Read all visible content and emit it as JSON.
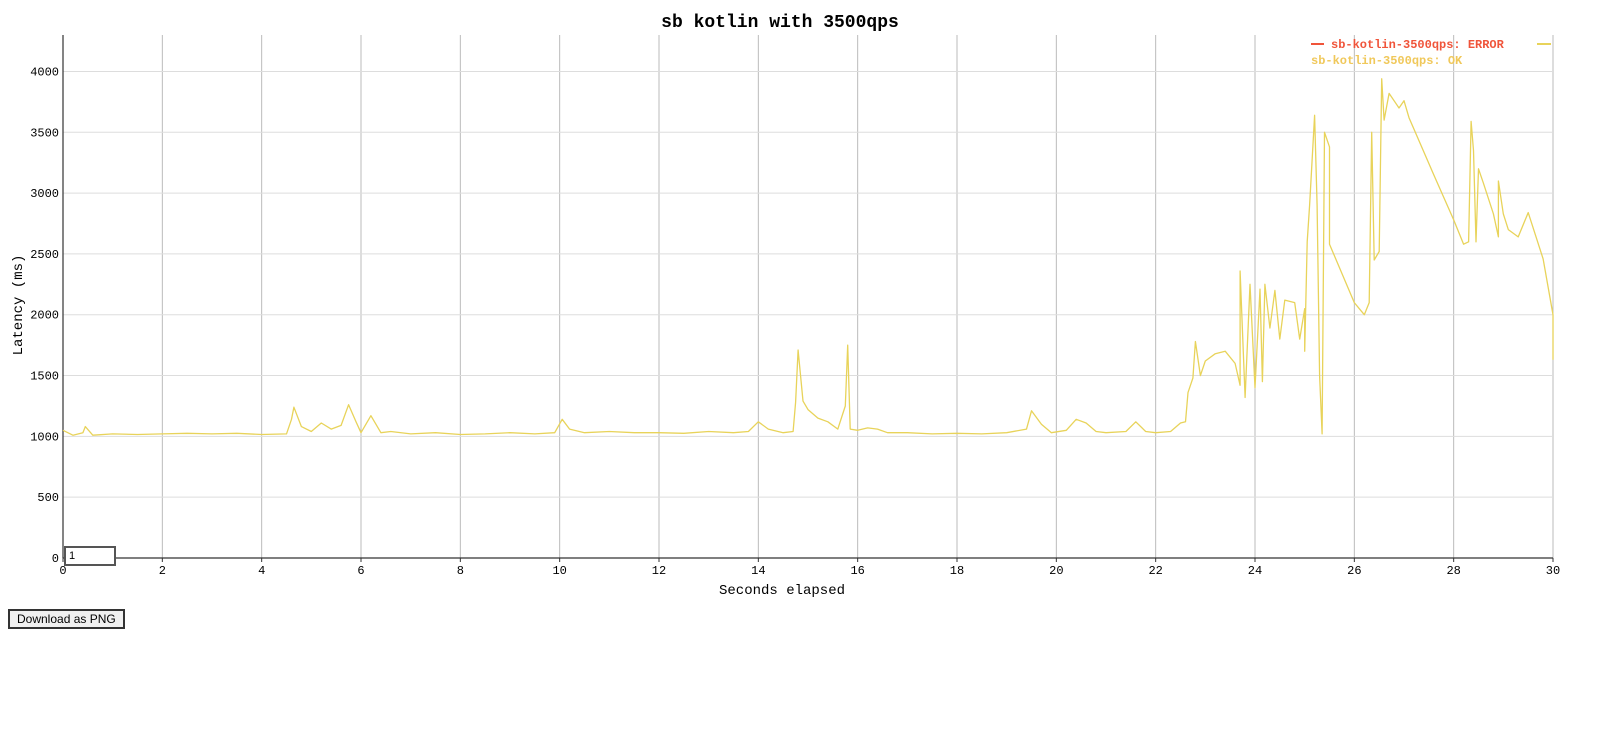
{
  "download_button_label": "Download as PNG",
  "smoothing_input_value": "1",
  "chart_data": {
    "type": "line",
    "title": "sb kotlin with 3500qps",
    "xlabel": "Seconds elapsed",
    "ylabel": "Latency (ms)",
    "xlim": [
      0,
      30
    ],
    "ylim": [
      0,
      4300
    ],
    "xticks": [
      0,
      2,
      4,
      6,
      8,
      10,
      12,
      14,
      16,
      18,
      20,
      22,
      24,
      26,
      28,
      30
    ],
    "yticks": [
      0,
      500,
      1000,
      1500,
      2000,
      2500,
      3000,
      3500,
      4000
    ],
    "grid": true,
    "legend_position": "top-right",
    "series": [
      {
        "name": "sb-kotlin-3500qps: ERROR",
        "color": "#f0543a",
        "points": []
      },
      {
        "name": "sb-kotlin-3500qps: OK",
        "color": "#e8d35a",
        "points": [
          [
            0.0,
            1050
          ],
          [
            0.2,
            1010
          ],
          [
            0.4,
            1030
          ],
          [
            0.45,
            1080
          ],
          [
            0.6,
            1010
          ],
          [
            1.0,
            1020
          ],
          [
            1.5,
            1015
          ],
          [
            2.0,
            1020
          ],
          [
            2.5,
            1025
          ],
          [
            3.0,
            1020
          ],
          [
            3.5,
            1025
          ],
          [
            4.0,
            1015
          ],
          [
            4.5,
            1020
          ],
          [
            4.6,
            1140
          ],
          [
            4.65,
            1240
          ],
          [
            4.8,
            1080
          ],
          [
            5.0,
            1040
          ],
          [
            5.2,
            1110
          ],
          [
            5.4,
            1060
          ],
          [
            5.6,
            1090
          ],
          [
            5.75,
            1260
          ],
          [
            5.9,
            1120
          ],
          [
            6.0,
            1030
          ],
          [
            6.2,
            1170
          ],
          [
            6.4,
            1030
          ],
          [
            6.6,
            1040
          ],
          [
            7.0,
            1020
          ],
          [
            7.5,
            1030
          ],
          [
            8.0,
            1015
          ],
          [
            8.5,
            1020
          ],
          [
            9.0,
            1030
          ],
          [
            9.5,
            1020
          ],
          [
            9.9,
            1030
          ],
          [
            10.05,
            1140
          ],
          [
            10.2,
            1060
          ],
          [
            10.5,
            1030
          ],
          [
            11.0,
            1040
          ],
          [
            11.5,
            1030
          ],
          [
            12.0,
            1030
          ],
          [
            12.5,
            1025
          ],
          [
            13.0,
            1040
          ],
          [
            13.5,
            1030
          ],
          [
            13.8,
            1040
          ],
          [
            14.0,
            1120
          ],
          [
            14.2,
            1060
          ],
          [
            14.5,
            1030
          ],
          [
            14.7,
            1040
          ],
          [
            14.75,
            1280
          ],
          [
            14.8,
            1710
          ],
          [
            14.9,
            1290
          ],
          [
            15.0,
            1220
          ],
          [
            15.2,
            1150
          ],
          [
            15.4,
            1120
          ],
          [
            15.6,
            1060
          ],
          [
            15.75,
            1250
          ],
          [
            15.8,
            1750
          ],
          [
            15.85,
            1060
          ],
          [
            16.0,
            1050
          ],
          [
            16.2,
            1070
          ],
          [
            16.4,
            1060
          ],
          [
            16.6,
            1030
          ],
          [
            17.0,
            1030
          ],
          [
            17.5,
            1020
          ],
          [
            18.0,
            1025
          ],
          [
            18.5,
            1020
          ],
          [
            19.0,
            1030
          ],
          [
            19.4,
            1060
          ],
          [
            19.5,
            1210
          ],
          [
            19.7,
            1100
          ],
          [
            19.9,
            1030
          ],
          [
            20.2,
            1050
          ],
          [
            20.4,
            1140
          ],
          [
            20.6,
            1110
          ],
          [
            20.8,
            1040
          ],
          [
            21.0,
            1030
          ],
          [
            21.4,
            1040
          ],
          [
            21.6,
            1120
          ],
          [
            21.8,
            1040
          ],
          [
            22.0,
            1030
          ],
          [
            22.3,
            1040
          ],
          [
            22.5,
            1110
          ],
          [
            22.6,
            1120
          ],
          [
            22.65,
            1360
          ],
          [
            22.75,
            1480
          ],
          [
            22.8,
            1780
          ],
          [
            22.9,
            1500
          ],
          [
            23.0,
            1620
          ],
          [
            23.2,
            1680
          ],
          [
            23.4,
            1700
          ],
          [
            23.6,
            1600
          ],
          [
            23.7,
            1420
          ],
          [
            23.7,
            2360
          ],
          [
            23.8,
            1320
          ],
          [
            23.9,
            2250
          ],
          [
            24.0,
            1400
          ],
          [
            24.1,
            2210
          ],
          [
            24.15,
            1450
          ],
          [
            24.2,
            2250
          ],
          [
            24.3,
            1890
          ],
          [
            24.4,
            2200
          ],
          [
            24.5,
            1800
          ],
          [
            24.6,
            2120
          ],
          [
            24.8,
            2100
          ],
          [
            24.9,
            1800
          ],
          [
            25.0,
            2050
          ],
          [
            25.0,
            1700
          ],
          [
            25.05,
            2600
          ],
          [
            25.1,
            2900
          ],
          [
            25.2,
            3640
          ],
          [
            25.25,
            2900
          ],
          [
            25.3,
            1500
          ],
          [
            25.35,
            1020
          ],
          [
            25.4,
            3500
          ],
          [
            25.5,
            3380
          ],
          [
            25.5,
            2580
          ],
          [
            26.0,
            2100
          ],
          [
            26.1,
            2050
          ],
          [
            26.2,
            2000
          ],
          [
            26.3,
            2100
          ],
          [
            26.35,
            3500
          ],
          [
            26.4,
            2450
          ],
          [
            26.5,
            2520
          ],
          [
            26.55,
            3940
          ],
          [
            26.6,
            3600
          ],
          [
            26.7,
            3820
          ],
          [
            26.9,
            3700
          ],
          [
            27.0,
            3760
          ],
          [
            27.1,
            3620
          ],
          [
            27.6,
            3150
          ],
          [
            28.0,
            2780
          ],
          [
            28.2,
            2580
          ],
          [
            28.3,
            2600
          ],
          [
            28.35,
            3590
          ],
          [
            28.4,
            3350
          ],
          [
            28.45,
            2600
          ],
          [
            28.5,
            3200
          ],
          [
            28.6,
            3080
          ],
          [
            28.8,
            2830
          ],
          [
            28.9,
            2640
          ],
          [
            28.9,
            3100
          ],
          [
            29.0,
            2830
          ],
          [
            29.1,
            2700
          ],
          [
            29.3,
            2640
          ],
          [
            29.5,
            2840
          ],
          [
            29.8,
            2460
          ],
          [
            30.0,
            2000
          ],
          [
            30.0,
            1630
          ]
        ]
      }
    ]
  }
}
